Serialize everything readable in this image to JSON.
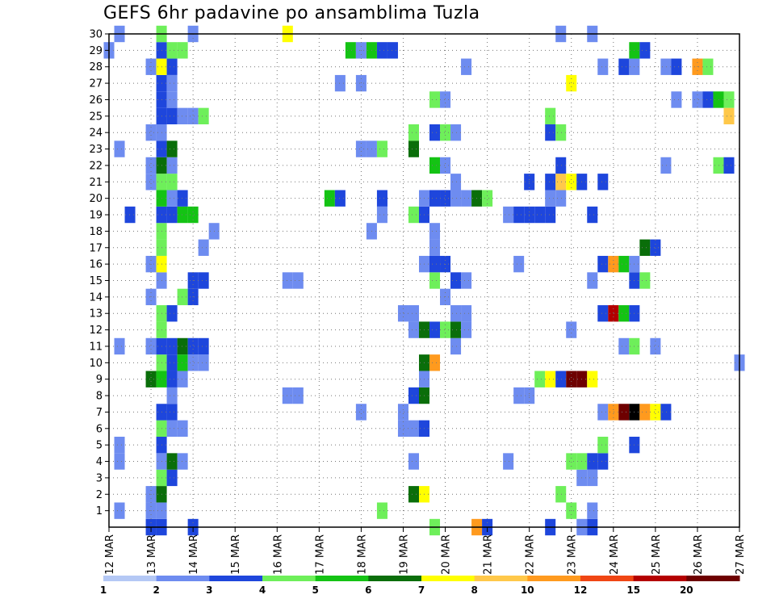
{
  "chart_data": {
    "type": "heatmap",
    "title": "GEFS 6hr padavine po ansamblima Tuzla",
    "xlabel": "",
    "ylabel": "",
    "x_ticks": [
      "12 MAR",
      "13 MAR",
      "14 MAR",
      "15 MAR",
      "16 MAR",
      "17 MAR",
      "18 MAR",
      "19 MAR",
      "20 MAR",
      "21 MAR",
      "22 MAR",
      "23 MAR",
      "24 MAR",
      "25 MAR",
      "26 MAR",
      "27 MAR"
    ],
    "y_ticks": [
      "1",
      "2",
      "3",
      "4",
      "5",
      "6",
      "7",
      "8",
      "9",
      "10",
      "11",
      "12",
      "13",
      "14",
      "15",
      "16",
      "17",
      "18",
      "19",
      "20",
      "21",
      "22",
      "23",
      "24",
      "25",
      "26",
      "27",
      "28",
      "29",
      "30"
    ],
    "x_range_days": [
      12,
      27
    ],
    "y_range": [
      0,
      30
    ],
    "time_step_hours": 6,
    "grid": true,
    "color_levels": [
      1,
      2,
      3,
      4,
      5,
      6,
      7,
      8,
      10,
      12,
      15,
      20
    ],
    "colors": [
      "#b4c8f5",
      "#6e8cf0",
      "#1e46dc",
      "#6eef5a",
      "#14c314",
      "#0a6e0a",
      "#ffff00",
      "#ffc84a",
      "#ff9a1e",
      "#f04614",
      "#b40000",
      "#6e0000"
    ],
    "cells": [
      [
        13.0,
        0,
        2
      ],
      [
        13.25,
        0,
        2
      ],
      [
        19.75,
        0,
        3
      ],
      [
        20.75,
        0,
        8
      ],
      [
        21.0,
        0,
        2
      ],
      [
        22.5,
        0,
        2
      ],
      [
        23.25,
        0,
        1
      ],
      [
        23.5,
        0,
        2
      ],
      [
        14.0,
        0,
        2
      ],
      [
        13.0,
        1,
        1
      ],
      [
        13.25,
        1,
        1
      ],
      [
        12.25,
        1,
        1
      ],
      [
        18.5,
        1,
        3
      ],
      [
        23.0,
        1,
        3
      ],
      [
        23.5,
        1,
        1
      ],
      [
        13.0,
        2,
        1
      ],
      [
        13.25,
        2,
        5
      ],
      [
        19.25,
        2,
        5
      ],
      [
        19.5,
        2,
        6
      ],
      [
        22.75,
        2,
        3
      ],
      [
        13.25,
        3,
        3
      ],
      [
        13.5,
        3,
        2
      ],
      [
        23.25,
        3,
        1
      ],
      [
        23.5,
        3,
        1
      ],
      [
        12.25,
        4,
        1
      ],
      [
        13.25,
        4,
        1
      ],
      [
        13.5,
        4,
        5
      ],
      [
        13.75,
        4,
        1
      ],
      [
        19.25,
        4,
        1
      ],
      [
        21.5,
        4,
        1
      ],
      [
        23.0,
        4,
        3
      ],
      [
        23.25,
        4,
        3
      ],
      [
        23.5,
        4,
        2
      ],
      [
        23.75,
        4,
        2
      ],
      [
        12.25,
        5,
        1
      ],
      [
        13.25,
        5,
        2
      ],
      [
        23.75,
        5,
        3
      ],
      [
        24.5,
        5,
        2
      ],
      [
        13.25,
        6,
        3
      ],
      [
        13.5,
        6,
        1
      ],
      [
        13.75,
        6,
        1
      ],
      [
        19.0,
        6,
        1
      ],
      [
        19.25,
        6,
        1
      ],
      [
        19.5,
        6,
        2
      ],
      [
        13.25,
        7,
        2
      ],
      [
        13.5,
        7,
        2
      ],
      [
        18.0,
        7,
        1
      ],
      [
        19.0,
        7,
        1
      ],
      [
        23.75,
        7,
        1
      ],
      [
        24.0,
        7,
        8
      ],
      [
        24.25,
        7,
        11
      ],
      [
        24.5,
        7,
        12
      ],
      [
        24.75,
        7,
        8
      ],
      [
        25.0,
        7,
        6
      ],
      [
        25.25,
        7,
        2
      ],
      [
        13.5,
        8,
        1
      ],
      [
        16.25,
        8,
        1
      ],
      [
        16.5,
        8,
        1
      ],
      [
        19.25,
        8,
        2
      ],
      [
        19.5,
        8,
        5
      ],
      [
        21.75,
        8,
        1
      ],
      [
        22.0,
        8,
        1
      ],
      [
        13.0,
        9,
        5
      ],
      [
        13.25,
        9,
        4
      ],
      [
        13.5,
        9,
        2
      ],
      [
        13.75,
        9,
        1
      ],
      [
        19.5,
        9,
        1
      ],
      [
        22.25,
        9,
        3
      ],
      [
        22.5,
        9,
        6
      ],
      [
        22.75,
        9,
        2
      ],
      [
        23.0,
        9,
        11
      ],
      [
        23.25,
        9,
        11
      ],
      [
        23.5,
        9,
        6
      ],
      [
        13.25,
        10,
        3
      ],
      [
        13.5,
        10,
        2
      ],
      [
        13.75,
        10,
        4
      ],
      [
        14.0,
        10,
        1
      ],
      [
        14.25,
        10,
        1
      ],
      [
        19.5,
        10,
        5
      ],
      [
        19.75,
        10,
        8
      ],
      [
        27.0,
        10,
        1
      ],
      [
        12.25,
        11,
        1
      ],
      [
        13.0,
        11,
        1
      ],
      [
        13.25,
        11,
        2
      ],
      [
        13.5,
        11,
        2
      ],
      [
        13.75,
        11,
        5
      ],
      [
        14.0,
        11,
        2
      ],
      [
        14.25,
        11,
        2
      ],
      [
        20.25,
        11,
        1
      ],
      [
        24.25,
        11,
        1
      ],
      [
        24.5,
        11,
        3
      ],
      [
        25.0,
        11,
        1
      ],
      [
        13.25,
        12,
        3
      ],
      [
        19.25,
        12,
        1
      ],
      [
        19.5,
        12,
        5
      ],
      [
        19.75,
        12,
        2
      ],
      [
        20.0,
        12,
        3
      ],
      [
        20.25,
        12,
        5
      ],
      [
        20.5,
        12,
        1
      ],
      [
        23.0,
        12,
        1
      ],
      [
        13.25,
        13,
        3
      ],
      [
        13.5,
        13,
        2
      ],
      [
        19.0,
        13,
        1
      ],
      [
        19.25,
        13,
        1
      ],
      [
        20.25,
        13,
        1
      ],
      [
        20.5,
        13,
        1
      ],
      [
        23.75,
        13,
        2
      ],
      [
        24.0,
        13,
        10
      ],
      [
        24.25,
        13,
        4
      ],
      [
        24.5,
        13,
        2
      ],
      [
        13.0,
        14,
        1
      ],
      [
        13.75,
        14,
        3
      ],
      [
        14.0,
        14,
        2
      ],
      [
        20.0,
        14,
        1
      ],
      [
        13.25,
        15,
        1
      ],
      [
        14.0,
        15,
        2
      ],
      [
        14.25,
        15,
        2
      ],
      [
        16.25,
        15,
        1
      ],
      [
        16.5,
        15,
        1
      ],
      [
        19.75,
        15,
        3
      ],
      [
        20.25,
        15,
        2
      ],
      [
        20.5,
        15,
        1
      ],
      [
        23.5,
        15,
        1
      ],
      [
        24.5,
        15,
        2
      ],
      [
        24.75,
        15,
        3
      ],
      [
        13.0,
        16,
        1
      ],
      [
        13.25,
        16,
        6
      ],
      [
        19.5,
        16,
        1
      ],
      [
        19.75,
        16,
        2
      ],
      [
        20.0,
        16,
        2
      ],
      [
        21.75,
        16,
        1
      ],
      [
        23.75,
        16,
        2
      ],
      [
        24.0,
        16,
        8
      ],
      [
        24.25,
        16,
        4
      ],
      [
        24.5,
        16,
        1
      ],
      [
        13.25,
        17,
        3
      ],
      [
        14.25,
        17,
        1
      ],
      [
        19.75,
        17,
        1
      ],
      [
        24.75,
        17,
        5
      ],
      [
        25.0,
        17,
        2
      ],
      [
        13.25,
        18,
        3
      ],
      [
        14.5,
        18,
        1
      ],
      [
        18.25,
        18,
        1
      ],
      [
        19.75,
        18,
        1
      ],
      [
        12.5,
        19,
        2
      ],
      [
        13.25,
        19,
        2
      ],
      [
        13.5,
        19,
        2
      ],
      [
        13.75,
        19,
        4
      ],
      [
        14.0,
        19,
        4
      ],
      [
        18.5,
        19,
        1
      ],
      [
        19.25,
        19,
        3
      ],
      [
        19.5,
        19,
        2
      ],
      [
        21.5,
        19,
        1
      ],
      [
        21.75,
        19,
        2
      ],
      [
        22.0,
        19,
        2
      ],
      [
        22.25,
        19,
        2
      ],
      [
        22.5,
        19,
        2
      ],
      [
        23.5,
        19,
        2
      ],
      [
        13.25,
        20,
        4
      ],
      [
        13.5,
        20,
        1
      ],
      [
        13.75,
        20,
        2
      ],
      [
        17.25,
        20,
        4
      ],
      [
        17.5,
        20,
        2
      ],
      [
        18.5,
        20,
        2
      ],
      [
        19.5,
        20,
        1
      ],
      [
        19.75,
        20,
        2
      ],
      [
        20.0,
        20,
        2
      ],
      [
        20.25,
        20,
        1
      ],
      [
        20.5,
        20,
        1
      ],
      [
        20.75,
        20,
        5
      ],
      [
        21.0,
        20,
        3
      ],
      [
        22.5,
        20,
        1
      ],
      [
        22.75,
        20,
        1
      ],
      [
        13.0,
        21,
        1
      ],
      [
        13.25,
        21,
        3
      ],
      [
        13.5,
        21,
        3
      ],
      [
        20.25,
        21,
        1
      ],
      [
        22.0,
        21,
        2
      ],
      [
        22.5,
        21,
        2
      ],
      [
        22.75,
        21,
        7
      ],
      [
        23.0,
        21,
        6
      ],
      [
        23.25,
        21,
        2
      ],
      [
        23.75,
        21,
        2
      ],
      [
        13.0,
        22,
        1
      ],
      [
        13.25,
        22,
        5
      ],
      [
        13.5,
        22,
        1
      ],
      [
        19.75,
        22,
        4
      ],
      [
        20.0,
        22,
        1
      ],
      [
        22.75,
        22,
        2
      ],
      [
        25.25,
        22,
        1
      ],
      [
        26.5,
        22,
        3
      ],
      [
        26.75,
        22,
        2
      ],
      [
        12.25,
        23,
        1
      ],
      [
        13.25,
        23,
        2
      ],
      [
        13.5,
        23,
        5
      ],
      [
        18.0,
        23,
        1
      ],
      [
        18.25,
        23,
        1
      ],
      [
        18.5,
        23,
        3
      ],
      [
        19.25,
        23,
        5
      ],
      [
        13.0,
        24,
        1
      ],
      [
        13.25,
        24,
        1
      ],
      [
        19.25,
        24,
        3
      ],
      [
        19.75,
        24,
        2
      ],
      [
        20.0,
        24,
        3
      ],
      [
        20.25,
        24,
        1
      ],
      [
        22.5,
        24,
        2
      ],
      [
        22.75,
        24,
        3
      ],
      [
        13.25,
        25,
        2
      ],
      [
        13.5,
        25,
        2
      ],
      [
        13.75,
        25,
        1
      ],
      [
        14.0,
        25,
        1
      ],
      [
        14.25,
        25,
        3
      ],
      [
        22.5,
        25,
        3
      ],
      [
        26.75,
        25,
        7
      ],
      [
        13.25,
        26,
        2
      ],
      [
        13.5,
        26,
        1
      ],
      [
        19.75,
        26,
        3
      ],
      [
        20.0,
        26,
        1
      ],
      [
        25.5,
        26,
        1
      ],
      [
        26.0,
        26,
        1
      ],
      [
        26.25,
        26,
        2
      ],
      [
        26.5,
        26,
        4
      ],
      [
        26.75,
        26,
        3
      ],
      [
        13.25,
        27,
        2
      ],
      [
        13.5,
        27,
        1
      ],
      [
        17.5,
        27,
        1
      ],
      [
        18.0,
        27,
        1
      ],
      [
        23.0,
        27,
        6
      ],
      [
        13.0,
        28,
        1
      ],
      [
        13.25,
        28,
        6
      ],
      [
        13.5,
        28,
        2
      ],
      [
        20.5,
        28,
        1
      ],
      [
        23.75,
        28,
        1
      ],
      [
        24.25,
        28,
        2
      ],
      [
        24.5,
        28,
        1
      ],
      [
        25.25,
        28,
        1
      ],
      [
        25.5,
        28,
        2
      ],
      [
        26.0,
        28,
        8
      ],
      [
        26.25,
        28,
        3
      ],
      [
        12.0,
        29,
        1
      ],
      [
        13.25,
        29,
        2
      ],
      [
        13.5,
        29,
        3
      ],
      [
        13.75,
        29,
        3
      ],
      [
        17.75,
        29,
        4
      ],
      [
        18.0,
        29,
        1
      ],
      [
        18.25,
        29,
        4
      ],
      [
        18.5,
        29,
        2
      ],
      [
        18.75,
        29,
        2
      ],
      [
        24.5,
        29,
        4
      ],
      [
        24.75,
        29,
        2
      ],
      [
        12.25,
        30,
        1
      ],
      [
        13.25,
        30,
        3
      ],
      [
        14.0,
        30,
        1
      ],
      [
        16.25,
        30,
        6
      ],
      [
        22.75,
        30,
        1
      ],
      [
        23.5,
        30,
        1
      ]
    ]
  }
}
